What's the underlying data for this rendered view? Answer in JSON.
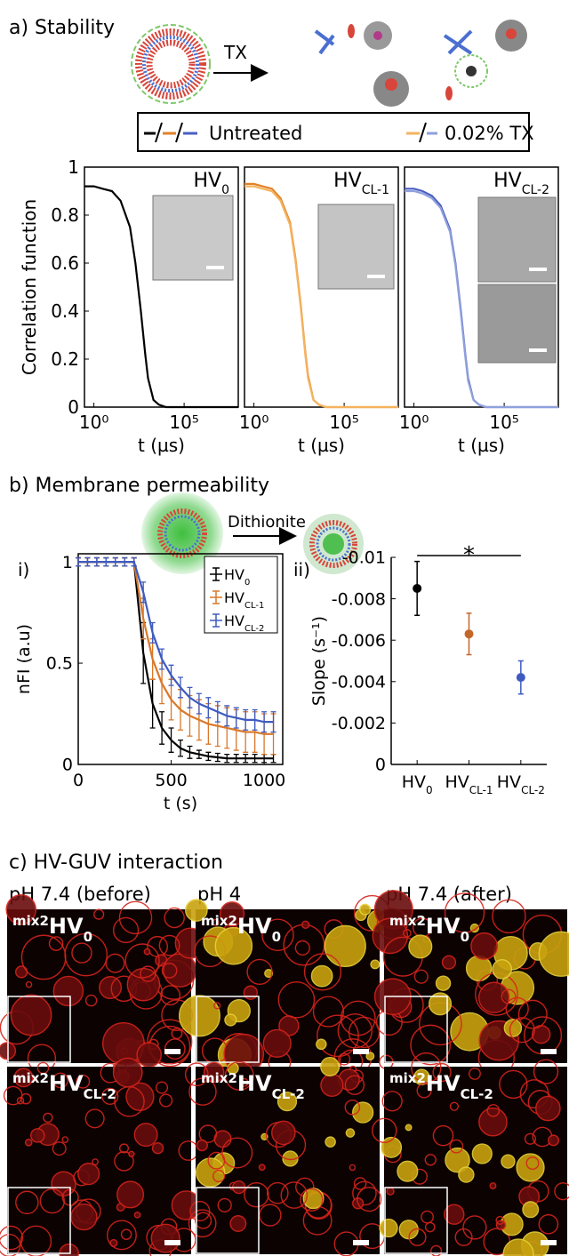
{
  "panels": {
    "a": "a) Stability",
    "b": "b) Membrane permeability",
    "c": "c) HV-GUV interaction"
  },
  "scheme": {
    "arrow_a": "TX",
    "arrow_b": "Dithionite"
  },
  "legend_a": {
    "untreated": "Untreated",
    "treated": "0.02% TX"
  },
  "chart_data": [
    {
      "type": "line",
      "log_x": true,
      "title": {
        "text": "HV",
        "sub": "0"
      },
      "x": [
        0.3,
        1,
        3,
        10,
        30,
        100,
        200,
        400,
        700,
        1000,
        2000,
        4000,
        10000,
        100000,
        1000000,
        10000000,
        100000000
      ],
      "series": [
        {
          "color": "#000000",
          "values": [
            0.92,
            0.92,
            0.91,
            0.9,
            0.86,
            0.75,
            0.6,
            0.4,
            0.22,
            0.12,
            0.03,
            0.01,
            0,
            0,
            0,
            0,
            0
          ]
        }
      ],
      "xlim": [
        0.3,
        100000000
      ],
      "xticks": [
        {
          "value": 1,
          "label": "10⁰"
        },
        {
          "value": 100000,
          "label": "10⁵"
        }
      ],
      "ylim": [
        0,
        1
      ],
      "yticks": [
        0,
        0.2,
        0.4,
        0.6,
        0.8,
        1
      ],
      "x_label": "t (µs)",
      "y_label": "Correlation function"
    },
    {
      "type": "line",
      "log_x": true,
      "title": {
        "text": "HV",
        "sub": "CL-1"
      },
      "x": [
        0.3,
        1,
        3,
        10,
        30,
        100,
        200,
        400,
        700,
        1000,
        2000,
        4000,
        10000,
        100000,
        1000000,
        10000000,
        100000000
      ],
      "series": [
        {
          "color": "#e2822a",
          "values": [
            0.93,
            0.93,
            0.92,
            0.91,
            0.87,
            0.77,
            0.62,
            0.42,
            0.23,
            0.13,
            0.03,
            0.01,
            0,
            0,
            0,
            0,
            0
          ]
        },
        {
          "color": "#f4b35e",
          "values": [
            0.92,
            0.92,
            0.91,
            0.9,
            0.86,
            0.76,
            0.61,
            0.41,
            0.22,
            0.12,
            0.03,
            0.01,
            0,
            0,
            0,
            0,
            0
          ]
        }
      ],
      "xlim": [
        0.3,
        100000000
      ],
      "xticks": [
        {
          "value": 1,
          "label": "10⁰"
        },
        {
          "value": 100000,
          "label": "10⁵"
        }
      ],
      "ylim": [
        0,
        1
      ],
      "x_label": "t (µs)"
    },
    {
      "type": "line",
      "log_x": true,
      "title": {
        "text": "HV",
        "sub": "CL-2"
      },
      "x": [
        0.3,
        1,
        3,
        10,
        30,
        100,
        200,
        400,
        700,
        1000,
        2000,
        4000,
        10000,
        100000,
        1000000,
        10000000,
        100000000
      ],
      "series": [
        {
          "color": "#4a5fc1",
          "values": [
            0.91,
            0.91,
            0.9,
            0.88,
            0.84,
            0.74,
            0.6,
            0.4,
            0.22,
            0.12,
            0.03,
            0.01,
            0,
            0,
            0,
            0,
            0
          ]
        },
        {
          "color": "#8fa0dd",
          "values": [
            0.9,
            0.9,
            0.89,
            0.87,
            0.83,
            0.73,
            0.59,
            0.39,
            0.21,
            0.11,
            0.03,
            0.01,
            0,
            0,
            0,
            0,
            0
          ]
        }
      ],
      "xlim": [
        0.3,
        100000000
      ],
      "xticks": [
        {
          "value": 1,
          "label": "10⁰"
        },
        {
          "value": 100000,
          "label": "10⁵"
        }
      ],
      "ylim": [
        0,
        1
      ],
      "x_label": "t (µs)"
    },
    {
      "type": "line",
      "label": "i)",
      "x": [
        0,
        50,
        100,
        150,
        200,
        250,
        300,
        350,
        400,
        450,
        500,
        550,
        600,
        650,
        700,
        750,
        800,
        850,
        900,
        950,
        1000,
        1050
      ],
      "series": [
        {
          "name": {
            "text": "HV",
            "sub": "0"
          },
          "color": "#000000",
          "values": [
            1,
            1,
            1,
            1,
            1,
            1,
            1,
            0.55,
            0.3,
            0.18,
            0.12,
            0.08,
            0.06,
            0.05,
            0.04,
            0.035,
            0.03,
            0.03,
            0.03,
            0.03,
            0.03,
            0.03
          ],
          "errors": [
            0.02,
            0.02,
            0.02,
            0.02,
            0.02,
            0.02,
            0.02,
            0.15,
            0.12,
            0.08,
            0.06,
            0.04,
            0.03,
            0.02,
            0.02,
            0.02,
            0.02,
            0.02,
            0.02,
            0.02,
            0.02,
            0.02
          ]
        },
        {
          "name": {
            "text": "HV",
            "sub": "CL-1"
          },
          "color": "#d9782a",
          "values": [
            1,
            1,
            1,
            1,
            1,
            1,
            1,
            0.72,
            0.52,
            0.4,
            0.32,
            0.27,
            0.24,
            0.22,
            0.2,
            0.19,
            0.18,
            0.17,
            0.16,
            0.16,
            0.15,
            0.15
          ],
          "errors": [
            0.02,
            0.02,
            0.02,
            0.02,
            0.02,
            0.02,
            0.02,
            0.1,
            0.1,
            0.1,
            0.1,
            0.1,
            0.1,
            0.1,
            0.1,
            0.1,
            0.1,
            0.1,
            0.1,
            0.1,
            0.1,
            0.1
          ]
        },
        {
          "name": {
            "text": "HV",
            "sub": "CL-2"
          },
          "color": "#3f5bbf",
          "values": [
            1,
            1,
            1,
            1,
            1,
            1,
            1,
            0.85,
            0.65,
            0.52,
            0.44,
            0.38,
            0.33,
            0.3,
            0.28,
            0.26,
            0.24,
            0.23,
            0.22,
            0.22,
            0.21,
            0.21
          ],
          "errors": [
            0.02,
            0.02,
            0.02,
            0.02,
            0.02,
            0.02,
            0.02,
            0.05,
            0.05,
            0.05,
            0.05,
            0.05,
            0.05,
            0.05,
            0.05,
            0.05,
            0.05,
            0.05,
            0.05,
            0.05,
            0.05,
            0.05
          ]
        }
      ],
      "xlim": [
        0,
        1100
      ],
      "xticks": [
        0,
        500,
        1000
      ],
      "ylim": [
        0,
        1.04
      ],
      "yticks": [
        0,
        0.5,
        1
      ],
      "x_label": "t (s)",
      "y_label": "nFI (a.u)"
    },
    {
      "type": "dot",
      "label": "ii)",
      "categories": [
        {
          "text": "HV",
          "sub": "0"
        },
        {
          "text": "HV",
          "sub": "CL-1"
        },
        {
          "text": "HV",
          "sub": "CL-2"
        }
      ],
      "values": [
        -0.0085,
        -0.0063,
        -0.0042
      ],
      "errors": [
        0.0013,
        0.001,
        0.0008
      ],
      "colors": [
        "#000000",
        "#c5672a",
        "#3f5bbf"
      ],
      "ylim": [
        0,
        -0.01
      ],
      "yticks": [
        0,
        -0.002,
        -0.004,
        -0.006,
        -0.008,
        -0.01
      ],
      "y_label": "Slope (s⁻¹)",
      "annotation": "*"
    }
  ],
  "images": {
    "columns": [
      "pH 7.4 (before)",
      "pH 4",
      "pH 7.4 (after)"
    ],
    "rows": [
      {
        "sup": "mix2",
        "text": "HV",
        "sub": "0"
      },
      {
        "sup": "mix2",
        "text": "HV",
        "sub": "CL-2"
      }
    ]
  }
}
